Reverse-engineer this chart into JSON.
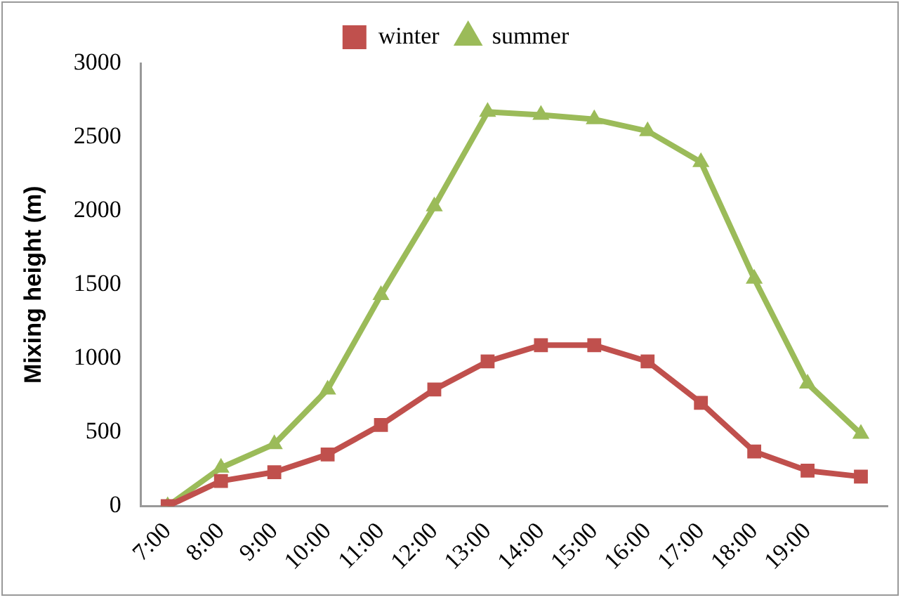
{
  "chart_data": {
    "type": "line",
    "ylabel": "Mixing height (m)",
    "categories": [
      "7:00",
      "8:00",
      "9:00",
      "10:00",
      "11:00",
      "12:00",
      "13:00",
      "14:00",
      "15:00",
      "16:00",
      "17:00",
      "18:00",
      "19:00",
      null
    ],
    "series": [
      {
        "name": "winter",
        "color": "#c0504d",
        "marker": "square",
        "values": [
          0,
          170,
          230,
          350,
          550,
          790,
          980,
          1090,
          1090,
          980,
          700,
          370,
          240,
          200
        ]
      },
      {
        "name": "summer",
        "color": "#9bbb59",
        "marker": "triangle",
        "values": [
          0,
          260,
          420,
          790,
          1430,
          2030,
          2670,
          2650,
          2620,
          2540,
          2330,
          1540,
          830,
          490
        ]
      }
    ],
    "ylim": [
      0,
      3000
    ],
    "yticks": [
      0,
      500,
      1000,
      1500,
      2000,
      2500,
      3000
    ],
    "grid": false,
    "legend": "top"
  }
}
